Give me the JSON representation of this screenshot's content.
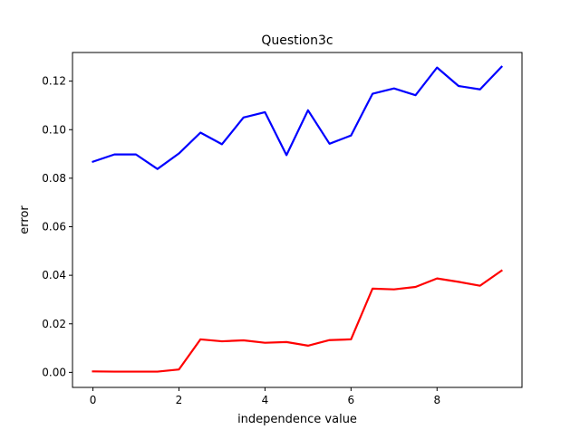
{
  "chart_data": {
    "type": "line",
    "title": "Question3c",
    "xlabel": "independence value",
    "ylabel": "error",
    "xlim": [
      -0.475,
      9.975
    ],
    "ylim": [
      -0.0062,
      0.1318
    ],
    "xticks": [
      0,
      2,
      4,
      6,
      8
    ],
    "xtick_labels": [
      "0",
      "2",
      "4",
      "6",
      "8"
    ],
    "yticks": [
      0.0,
      0.02,
      0.04,
      0.06,
      0.08,
      0.1,
      0.12
    ],
    "ytick_labels": [
      "0.00",
      "0.02",
      "0.04",
      "0.06",
      "0.08",
      "0.10",
      "0.12"
    ],
    "grid": false,
    "x": [
      0,
      0.5,
      1,
      1.5,
      2,
      2.5,
      3,
      3.5,
      4,
      4.5,
      5,
      5.5,
      6,
      6.5,
      7,
      7.5,
      8,
      8.5,
      9,
      9.5
    ],
    "series": [
      {
        "color": "#0000ff",
        "values": [
          0.0868,
          0.0898,
          0.0898,
          0.0838,
          0.0902,
          0.0988,
          0.094,
          0.105,
          0.1072,
          0.0895,
          0.108,
          0.0942,
          0.0976,
          0.1148,
          0.117,
          0.1142,
          0.1256,
          0.118,
          0.1166,
          0.1259
        ]
      },
      {
        "color": "#ff0000",
        "values": [
          0.0004,
          0.0003,
          0.0003,
          0.0003,
          0.0012,
          0.0136,
          0.0128,
          0.0132,
          0.0122,
          0.0125,
          0.011,
          0.0133,
          0.0136,
          0.0345,
          0.0342,
          0.0352,
          0.0387,
          0.0373,
          0.0357,
          0.0419
        ]
      }
    ]
  }
}
